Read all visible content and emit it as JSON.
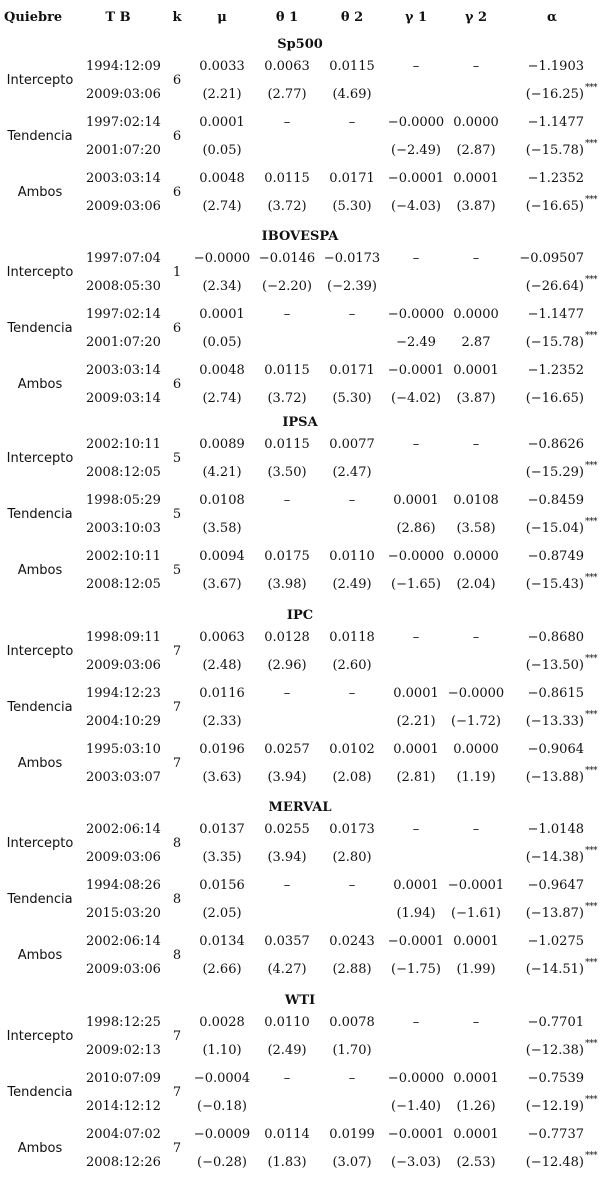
{
  "header": {
    "quiebre": "Quiebre",
    "tb": "T  B",
    "k": "k",
    "mu": "μ",
    "theta1": "θ  1",
    "theta2": "θ  2",
    "gamma1": "γ  1",
    "gamma2": "γ  2",
    "alpha": "α"
  },
  "sections": [
    {
      "name": "Sp500",
      "rows": [
        {
          "label": "Intercepto",
          "tb1": "1994:12:09",
          "tb2": "2009:03:06",
          "k": "6",
          "est": [
            "0.0033",
            "0.0063",
            "0.0115",
            "–",
            "–",
            "−1.1903"
          ],
          "t": [
            "(2.21)",
            "(2.77)",
            "(4.69)",
            "",
            "",
            "(−16.25)"
          ],
          "star": "***"
        },
        {
          "label": "Tendencia",
          "tb1": "1997:02:14",
          "tb2": "2001:07:20",
          "k": "6",
          "est": [
            "0.0001",
            "–",
            "–",
            "−0.0000",
            "0.0000",
            "−1.1477"
          ],
          "t": [
            "(0.05)",
            "",
            "",
            "(−2.49)",
            "(2.87)",
            "(−15.78)"
          ],
          "star": "***"
        },
        {
          "label": "Ambos",
          "tb1": "2003:03:14",
          "tb2": "2009:03:06",
          "k": "6",
          "est": [
            "0.0048",
            "0.0115",
            "0.0171",
            "−0.0001",
            "0.0001",
            "−1.2352"
          ],
          "t": [
            "(2.74)",
            "(3.72)",
            "(5.30)",
            "(−4.03)",
            "(3.87)",
            "(−16.65)"
          ],
          "star": "***"
        }
      ]
    },
    {
      "name": "IBOVESPA",
      "rows": [
        {
          "label": "Intercepto",
          "tb1": "1997:07:04",
          "tb2": "2008:05:30",
          "k": "1",
          "est": [
            "−0.0000",
            "−0.0146",
            "−0.0173",
            "–",
            "–",
            "−0.09507"
          ],
          "t": [
            "(2.34)",
            "(−2.20)",
            "(−2.39)",
            "",
            "",
            "(−26.64)"
          ],
          "star": "***"
        },
        {
          "label": "Tendencia",
          "tb1": "1997:02:14",
          "tb2": "2001:07:20",
          "k": "6",
          "est": [
            "0.0001",
            "–",
            "–",
            "−0.0000",
            "0.0000",
            "−1.1477"
          ],
          "t": [
            "(0.05)",
            "",
            "",
            "−2.49",
            "2.87",
            "(−15.78)"
          ],
          "star": "***"
        },
        {
          "label": "Ambos",
          "tb1": "2003:03:14",
          "tb2": "2009:03:14",
          "k": "6",
          "est": [
            "0.0048",
            "0.0115",
            "0.0171",
            "−0.0001",
            "0.0001",
            "−1.2352"
          ],
          "t": [
            "(2.74)",
            "(3.72)",
            "(5.30)",
            "(−4.02)",
            "(3.87)",
            "(−16.65)"
          ],
          "star": ""
        }
      ]
    },
    {
      "name": "IPSA",
      "rows": [
        {
          "label": "Intercepto",
          "tb1": "2002:10:11",
          "tb2": "2008:12:05",
          "k": "5",
          "est": [
            "0.0089",
            "0.0115",
            "0.0077",
            "–",
            "–",
            "−0.8626"
          ],
          "t": [
            "(4.21)",
            "(3.50)",
            "(2.47)",
            "",
            "",
            "(−15.29)"
          ],
          "star": "***"
        },
        {
          "label": "Tendencia",
          "tb1": "1998:05:29",
          "tb2": "2003:10:03",
          "k": "5",
          "est": [
            "0.0108",
            "–",
            "–",
            "0.0001",
            "0.0108",
            "−0.8459"
          ],
          "t": [
            "(3.58)",
            "",
            "",
            "(2.86)",
            "(3.58)",
            "(−15.04)"
          ],
          "star": "***"
        },
        {
          "label": "Ambos",
          "tb1": "2002:10:11",
          "tb2": "2008:12:05",
          "k": "5",
          "est": [
            "0.0094",
            "0.0175",
            "0.0110",
            "−0.0000",
            "0.0000",
            "−0.8749"
          ],
          "t": [
            "(3.67)",
            "(3.98)",
            "(2.49)",
            "(−1.65)",
            "(2.04)",
            "(−15.43)"
          ],
          "star": "***"
        }
      ]
    },
    {
      "name": "IPC",
      "rows": [
        {
          "label": "Intercepto",
          "tb1": "1998:09:11",
          "tb2": "2009:03:06",
          "k": "7",
          "est": [
            "0.0063",
            "0.0128",
            "0.0118",
            "–",
            "–",
            "−0.8680"
          ],
          "t": [
            "(2.48)",
            "(2.96)",
            "(2.60)",
            "",
            "",
            "(−13.50)"
          ],
          "star": "***"
        },
        {
          "label": "Tendencia",
          "tb1": "1994:12:23",
          "tb2": "2004:10:29",
          "k": "7",
          "est": [
            "0.0116",
            "–",
            "–",
            "0.0001",
            "−0.0000",
            "−0.8615"
          ],
          "t": [
            "(2.33)",
            "",
            "",
            "(2.21)",
            "(−1.72)",
            "(−13.33)"
          ],
          "star": "***"
        },
        {
          "label": "Ambos",
          "tb1": "1995:03:10",
          "tb2": "2003:03:07",
          "k": "7",
          "est": [
            "0.0196",
            "0.0257",
            "0.0102",
            "0.0001",
            "0.0000",
            "−0.9064"
          ],
          "t": [
            "(3.63)",
            "(3.94)",
            "(2.08)",
            "(2.81)",
            "(1.19)",
            "(−13.88)"
          ],
          "star": "***"
        }
      ]
    },
    {
      "name": "MERVAL",
      "rows": [
        {
          "label": "Intercepto",
          "tb1": "2002:06:14",
          "tb2": "2009:03:06",
          "k": "8",
          "est": [
            "0.0137",
            "0.0255",
            "0.0173",
            "–",
            "–",
            "−1.0148"
          ],
          "t": [
            "(3.35)",
            "(3.94)",
            "(2.80)",
            "",
            "",
            "(−14.38)"
          ],
          "star": "***"
        },
        {
          "label": "Tendencia",
          "tb1": "1994:08:26",
          "tb2": "2015:03:20",
          "k": "8",
          "est": [
            "0.0156",
            "–",
            "–",
            "0.0001",
            "−0.0001",
            "−0.9647"
          ],
          "t": [
            "(2.05)",
            "",
            "",
            "(1.94)",
            "(−1.61)",
            "(−13.87)"
          ],
          "star": "***"
        },
        {
          "label": "Ambos",
          "tb1": "2002:06:14",
          "tb2": "2009:03:06",
          "k": "8",
          "est": [
            "0.0134",
            "0.0357",
            "0.0243",
            "−0.0001",
            "0.0001",
            "−1.0275"
          ],
          "t": [
            "(2.66)",
            "(4.27)",
            "(2.88)",
            "(−1.75)",
            "(1.99)",
            "(−14.51)"
          ],
          "star": "***"
        }
      ]
    },
    {
      "name": "WTI",
      "rows": [
        {
          "label": "Intercepto",
          "tb1": "1998:12:25",
          "tb2": "2009:02:13",
          "k": "7",
          "est": [
            "0.0028",
            "0.0110",
            "0.0078",
            "–",
            "–",
            "−0.7701"
          ],
          "t": [
            "(1.10)",
            "(2.49)",
            "(1.70)",
            "",
            "",
            "(−12.38)"
          ],
          "star": "***"
        },
        {
          "label": "Tendencia",
          "tb1": "2010:07:09",
          "tb2": "2014:12:12",
          "k": "7",
          "est": [
            "−0.0004",
            "–",
            "–",
            "−0.0000",
            "0.0001",
            "−0.7539"
          ],
          "t": [
            "(−0.18)",
            "",
            "",
            "(−1.40)",
            "(1.26)",
            "(−12.19)"
          ],
          "star": "***"
        },
        {
          "label": "Ambos",
          "tb1": "2004:07:02",
          "tb2": "2008:12:26",
          "k": "7",
          "est": [
            "−0.0009",
            "0.0114",
            "0.0199",
            "−0.0001",
            "0.0001",
            "−0.7737"
          ],
          "t": [
            "(−0.28)",
            "(1.83)",
            "(3.07)",
            "(−3.03)",
            "(2.53)",
            "(−12.48)"
          ],
          "star": "***"
        }
      ]
    }
  ]
}
